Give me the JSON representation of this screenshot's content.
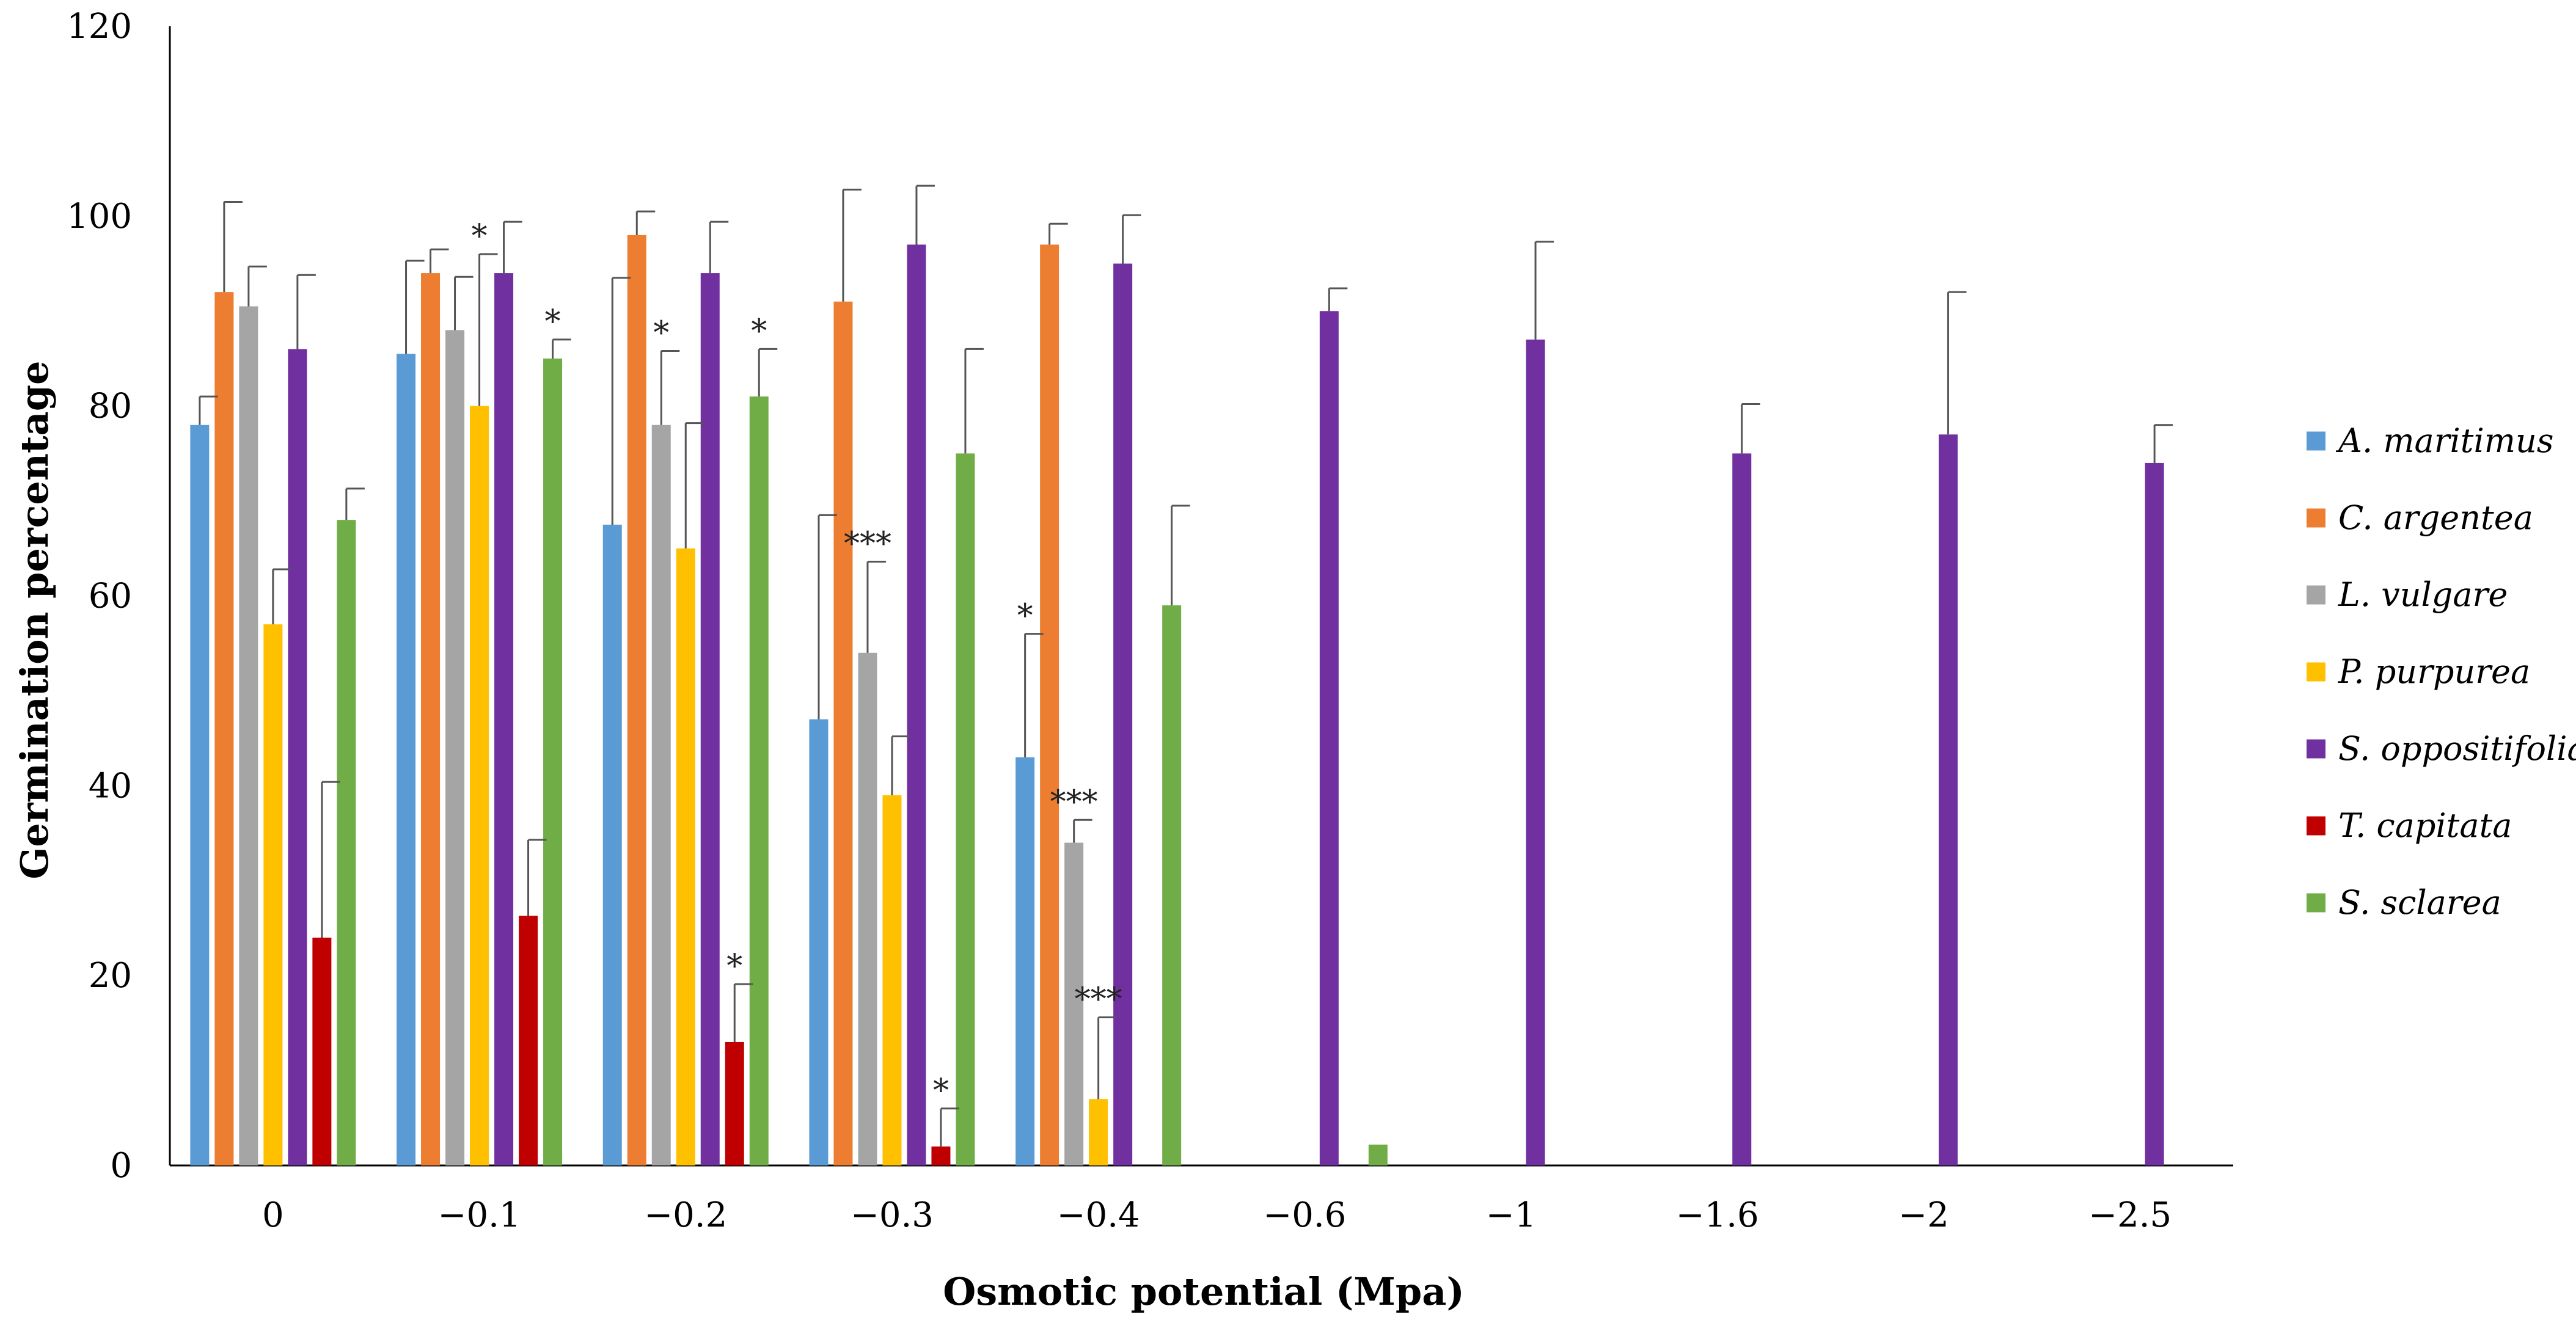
{
  "chart_data": {
    "type": "bar",
    "title": "",
    "xlabel": "Osmotic potential (Mpa)",
    "ylabel": "Germination percentage",
    "ylim": [
      0,
      120
    ],
    "yticks": [
      "0",
      "20",
      "40",
      "60",
      "80",
      "100",
      "120"
    ],
    "grid": false,
    "legend_position": "right",
    "categories": [
      "0",
      "−0.1",
      "−0.2",
      "−0.3",
      "−0.4",
      "−0.6",
      "−1",
      "−1.6",
      "−2",
      "−2.5"
    ],
    "series": [
      {
        "name": "A. maritimus",
        "color": "#5b9bd5",
        "values": [
          78,
          85.5,
          67.5,
          47,
          43,
          0,
          0,
          0,
          0,
          0
        ],
        "errors": [
          3,
          9.8,
          26,
          21.5,
          13,
          0,
          0,
          0,
          0,
          0
        ],
        "stars": [
          "",
          "",
          "",
          "",
          "*",
          "",
          "",
          "",
          "",
          ""
        ]
      },
      {
        "name": "C. argentea",
        "color": "#ed7d31",
        "values": [
          92,
          94,
          98,
          91,
          97,
          0,
          0,
          0,
          0,
          0
        ],
        "errors": [
          9.5,
          2.5,
          2.5,
          11.8,
          2.2,
          0,
          0,
          0,
          0,
          0
        ],
        "stars": [
          "",
          "",
          "",
          "",
          "",
          "",
          "",
          "",
          "",
          ""
        ]
      },
      {
        "name": "L. vulgare",
        "color": "#a5a5a5",
        "values": [
          90.5,
          88,
          78,
          54,
          34,
          0,
          0,
          0,
          0,
          0
        ],
        "errors": [
          4.2,
          5.6,
          7.8,
          9.6,
          2.4,
          0,
          0,
          0,
          0,
          0
        ],
        "stars": [
          "",
          "",
          "*",
          "***",
          "***",
          "",
          "",
          "",
          "",
          ""
        ]
      },
      {
        "name": "P. purpurea",
        "color": "#ffc000",
        "values": [
          57,
          80,
          65,
          39,
          7,
          0,
          0,
          0,
          0,
          0
        ],
        "errors": [
          5.8,
          16,
          13.2,
          6.2,
          8.6,
          0,
          0,
          0,
          0,
          0
        ],
        "stars": [
          "",
          "*",
          "",
          "",
          "***",
          "",
          "",
          "",
          "",
          ""
        ]
      },
      {
        "name": "S. oppositifolia",
        "color": "#7030a0",
        "values": [
          86,
          94,
          94,
          97,
          95,
          90,
          87,
          75,
          77,
          74
        ],
        "errors": [
          7.8,
          5.4,
          5.4,
          6.2,
          5.1,
          2.4,
          10.3,
          5.2,
          15,
          4
        ],
        "stars": [
          "",
          "",
          "",
          "",
          "",
          "",
          "",
          "",
          "",
          ""
        ]
      },
      {
        "name": "T. capitata",
        "color": "#c00000",
        "values": [
          24,
          26.3,
          13,
          2,
          0,
          0,
          0,
          0,
          0,
          0
        ],
        "errors": [
          16.4,
          8,
          6.1,
          4,
          0,
          0,
          0,
          0,
          0,
          0
        ],
        "stars": [
          "",
          "",
          "*",
          "*",
          "",
          "",
          "",
          "",
          "",
          ""
        ]
      },
      {
        "name": "S. sclarea",
        "color": "#70ad47",
        "values": [
          68,
          85,
          81,
          75,
          59,
          2.2,
          0,
          0,
          0,
          0
        ],
        "errors": [
          3.3,
          2,
          5,
          11,
          10.5,
          0,
          0,
          0,
          0,
          0
        ],
        "stars": [
          "",
          "*",
          "*",
          "",
          "",
          "",
          "",
          "",
          "",
          ""
        ]
      }
    ]
  }
}
